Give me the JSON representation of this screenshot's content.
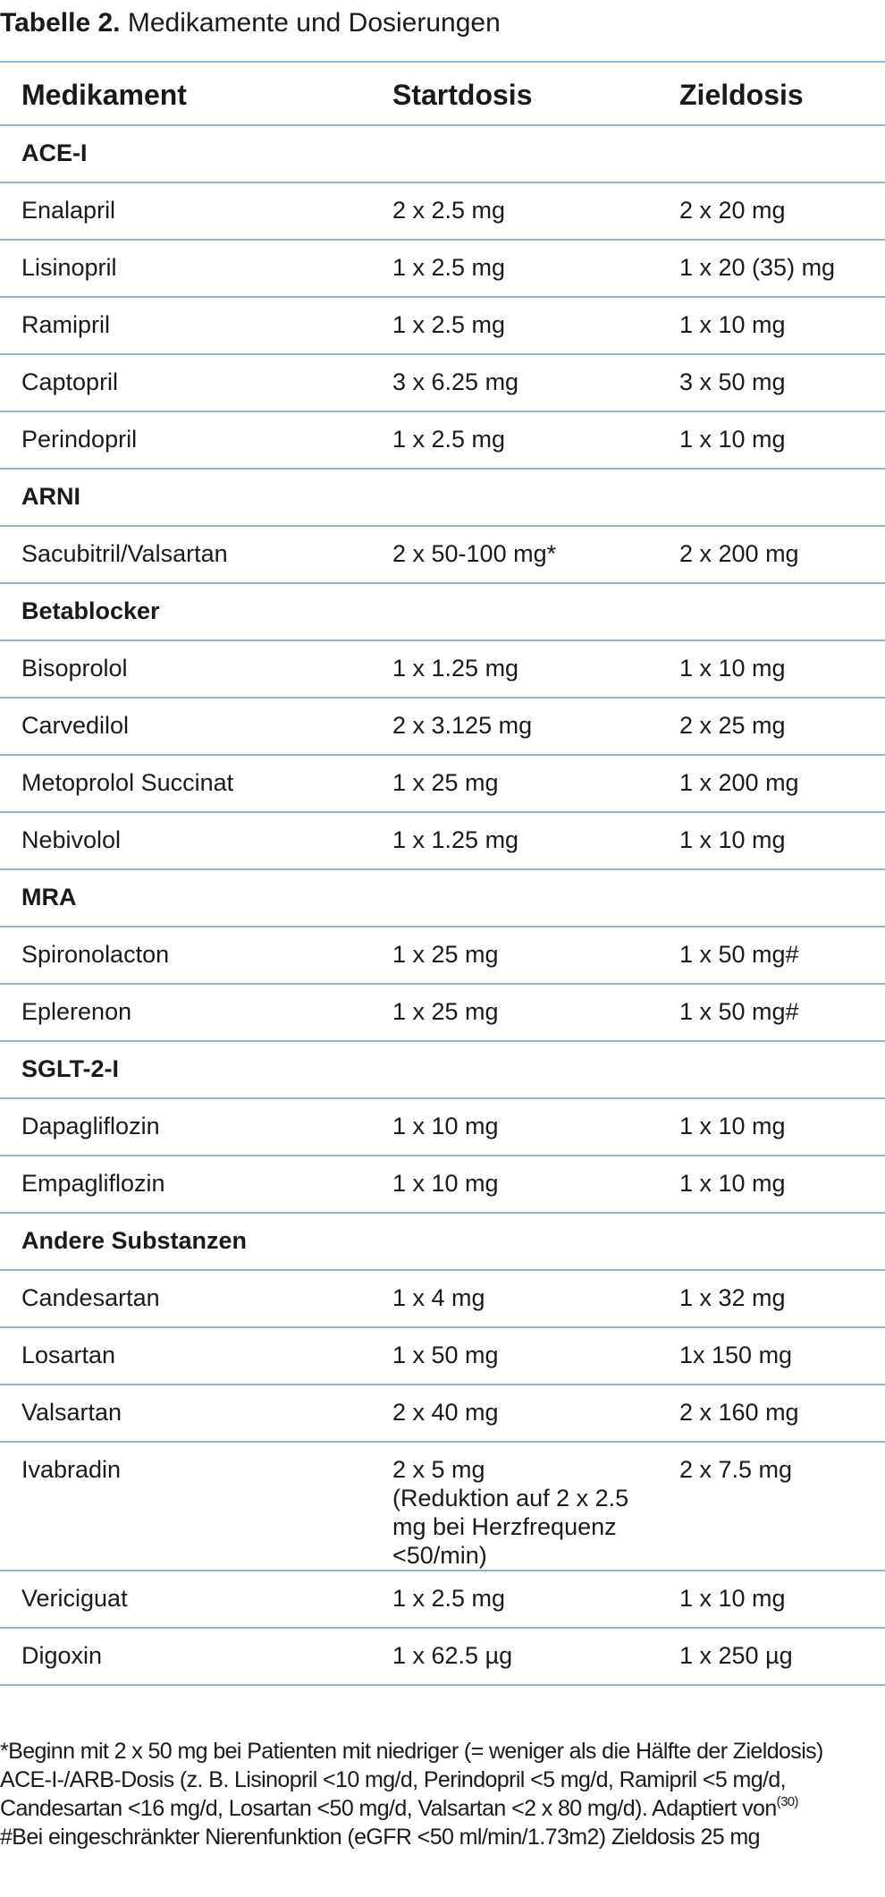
{
  "caption": {
    "lead": "Tabelle 2.",
    "text": " Medikamente und Dosierungen"
  },
  "table": {
    "headers": [
      "Medikament",
      "Startdosis",
      "Zieldosis"
    ],
    "groups": [
      {
        "name": "ACE-I",
        "rows": [
          [
            "Enalapril",
            "2 x 2.5 mg",
            "2 x 20 mg"
          ],
          [
            "Lisinopril",
            "1 x 2.5 mg",
            "1 x 20 (35) mg"
          ],
          [
            "Ramipril",
            "1 x 2.5 mg",
            "1 x 10 mg"
          ],
          [
            "Captopril",
            "3 x 6.25 mg",
            "3 x 50 mg"
          ],
          [
            "Perindopril",
            "1 x 2.5 mg",
            "1 x 10 mg"
          ]
        ]
      },
      {
        "name": "ARNI",
        "rows": [
          [
            "Sacubitril/Valsartan",
            "2 x 50-100 mg*",
            "2 x 200 mg"
          ]
        ]
      },
      {
        "name": "Betablocker",
        "rows": [
          [
            "Bisoprolol",
            "1 x 1.25 mg",
            "1 x 10 mg"
          ],
          [
            "Carvedilol",
            "2 x 3.125 mg",
            "2 x 25 mg"
          ],
          [
            "Metoprolol Succinat",
            "1 x 25 mg",
            "1 x 200 mg"
          ],
          [
            "Nebivolol",
            "1 x 1.25 mg",
            "1 x 10 mg"
          ]
        ]
      },
      {
        "name": "MRA",
        "rows": [
          [
            "Spironolacton",
            "1 x 25 mg",
            "1 x 50 mg#"
          ],
          [
            "Eplerenon",
            "1 x 25 mg",
            "1 x 50 mg#"
          ]
        ]
      },
      {
        "name": "SGLT-2-I",
        "rows": [
          [
            "Dapagliflozin",
            "1 x 10 mg",
            "1 x 10 mg"
          ],
          [
            "Empagliflozin",
            "1 x 10 mg",
            "1 x 10 mg"
          ]
        ]
      },
      {
        "name": "Andere Substanzen",
        "rows": [
          [
            "Candesartan",
            "1 x 4 mg",
            "1 x 32 mg"
          ],
          [
            "Losartan",
            "1 x 50 mg",
            "1x 150 mg"
          ],
          [
            "Valsartan",
            "2 x 40 mg",
            "2 x 160 mg"
          ],
          [
            "Ivabradin",
            "2 x 5 mg\n(Reduktion auf 2 x 2.5\nmg bei Herzfrequenz\n<50/min)",
            "2 x 7.5 mg"
          ],
          [
            "Vericiguat",
            "1 x 2.5 mg",
            "1 x 10 mg"
          ],
          [
            "Digoxin",
            "1 x 62.5 µg",
            "1 x 250 µg"
          ]
        ]
      }
    ]
  },
  "footnotes": {
    "line1": "*Beginn mit 2 x 50 mg bei Patienten mit niedriger (= weniger als die Hälfte der Zieldosis)",
    "line2": "ACE-I-/ARB-Dosis (z. B. Lisinopril <10 mg/d, Perindopril <5 mg/d, Ramipril <5 mg/d,",
    "line3": "Candesartan <16 mg/d, Losartan <50 mg/d, Valsartan <2 x 80 mg/d). Adaptiert von",
    "line3_ref": "(30)",
    "line4": "#Bei eingeschränkter Nierenfunktion (eGFR <50 ml/min/1.73m2) Zieldosis 25 mg"
  }
}
